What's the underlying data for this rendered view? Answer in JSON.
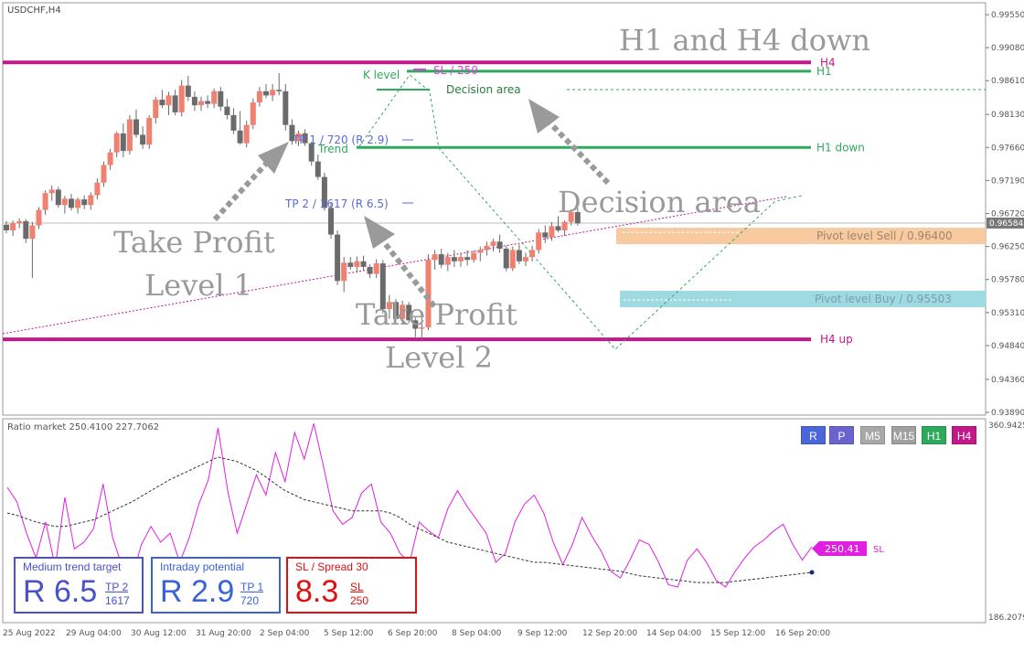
{
  "window": {
    "symbol": "USDCHF,H4"
  },
  "chart_data": {
    "type": "candlestick",
    "symbol": "USDCHF",
    "timeframe": "H4",
    "ylim": [
      0.9389,
      0.9955
    ],
    "y_ticks": [
      "0.99550",
      "0.99080",
      "0.98610",
      "0.98130",
      "0.97660",
      "0.97190",
      "0.96720",
      "0.96250",
      "0.95780",
      "0.95310",
      "0.94840",
      "0.94360",
      "0.93890"
    ],
    "y_tick_values": [
      0.9955,
      0.9908,
      0.9861,
      0.9813,
      0.9766,
      0.9719,
      0.9672,
      0.9625,
      0.9578,
      0.9531,
      0.9484,
      0.9436,
      0.9389
    ],
    "current_price": "0.96584",
    "x_labels": [
      "25 Aug 2022",
      "29 Aug 04:00",
      "30 Aug 12:00",
      "31 Aug 20:00",
      "2 Sep 04:00",
      "5 Sep 12:00",
      "6 Sep 20:00",
      "8 Sep 04:00",
      "9 Sep 12:00",
      "12 Sep 20:00",
      "14 Sep 04:00",
      "15 Sep 12:00",
      "16 Sep 20:00"
    ],
    "candles": [
      [
        0.9656,
        0.9661,
        0.9644,
        0.9648
      ],
      [
        0.9648,
        0.9662,
        0.964,
        0.9658
      ],
      [
        0.9658,
        0.9665,
        0.9651,
        0.9661
      ],
      [
        0.9661,
        0.9664,
        0.963,
        0.9636
      ],
      [
        0.9636,
        0.966,
        0.958,
        0.9655
      ],
      [
        0.9655,
        0.9681,
        0.965,
        0.9677
      ],
      [
        0.9677,
        0.9705,
        0.967,
        0.9701
      ],
      [
        0.9701,
        0.9712,
        0.969,
        0.9706
      ],
      [
        0.9706,
        0.971,
        0.968,
        0.9684
      ],
      [
        0.9684,
        0.9697,
        0.9672,
        0.9693
      ],
      [
        0.9693,
        0.97,
        0.9676,
        0.968
      ],
      [
        0.968,
        0.9695,
        0.9672,
        0.9692
      ],
      [
        0.9692,
        0.9698,
        0.9678,
        0.9684
      ],
      [
        0.9684,
        0.9702,
        0.9677,
        0.9698
      ],
      [
        0.9698,
        0.9722,
        0.9692,
        0.9716
      ],
      [
        0.9716,
        0.9746,
        0.971,
        0.9741
      ],
      [
        0.9741,
        0.9764,
        0.9734,
        0.9759
      ],
      [
        0.9759,
        0.9789,
        0.9752,
        0.9786
      ],
      [
        0.9786,
        0.98,
        0.9752,
        0.9761
      ],
      [
        0.9761,
        0.9812,
        0.9756,
        0.9806
      ],
      [
        0.9806,
        0.982,
        0.978,
        0.9784
      ],
      [
        0.9784,
        0.9796,
        0.9764,
        0.977
      ],
      [
        0.977,
        0.9812,
        0.9764,
        0.9808
      ],
      [
        0.9808,
        0.9838,
        0.98,
        0.9834
      ],
      [
        0.9834,
        0.9848,
        0.9822,
        0.9826
      ],
      [
        0.9826,
        0.9845,
        0.9812,
        0.984
      ],
      [
        0.984,
        0.9848,
        0.9812,
        0.9816
      ],
      [
        0.9816,
        0.9862,
        0.981,
        0.9854
      ],
      [
        0.9854,
        0.9868,
        0.9832,
        0.9838
      ],
      [
        0.9838,
        0.9846,
        0.9818,
        0.9826
      ],
      [
        0.9826,
        0.9838,
        0.9818,
        0.9832
      ],
      [
        0.9832,
        0.984,
        0.9822,
        0.9828
      ],
      [
        0.9828,
        0.985,
        0.9822,
        0.9846
      ],
      [
        0.9846,
        0.9852,
        0.9818,
        0.9824
      ],
      [
        0.9824,
        0.9835,
        0.9806,
        0.9812
      ],
      [
        0.9812,
        0.9822,
        0.9785,
        0.979
      ],
      [
        0.979,
        0.9818,
        0.977,
        0.9772
      ],
      [
        0.9772,
        0.9804,
        0.9766,
        0.9798
      ],
      [
        0.9798,
        0.9836,
        0.9792,
        0.983
      ],
      [
        0.983,
        0.9852,
        0.9824,
        0.9846
      ],
      [
        0.9846,
        0.9856,
        0.9836,
        0.984
      ],
      [
        0.984,
        0.9856,
        0.9832,
        0.9848
      ],
      [
        0.9848,
        0.9872,
        0.984,
        0.9846
      ],
      [
        0.9846,
        0.9856,
        0.979,
        0.9798
      ],
      [
        0.9798,
        0.9806,
        0.977,
        0.9775
      ],
      [
        0.9775,
        0.979,
        0.9768,
        0.9786
      ],
      [
        0.9786,
        0.9792,
        0.9768,
        0.9772
      ],
      [
        0.9772,
        0.9774,
        0.974,
        0.9746
      ],
      [
        0.9746,
        0.9756,
        0.972,
        0.9724
      ],
      [
        0.9724,
        0.973,
        0.9676,
        0.968
      ],
      [
        0.968,
        0.9688,
        0.9636,
        0.9642
      ],
      [
        0.9642,
        0.9648,
        0.957,
        0.9576
      ],
      [
        0.9576,
        0.961,
        0.956,
        0.9602
      ],
      [
        0.9602,
        0.961,
        0.9592,
        0.9596
      ],
      [
        0.9596,
        0.9611,
        0.9588,
        0.9604
      ],
      [
        0.9604,
        0.9612,
        0.959,
        0.9596
      ],
      [
        0.9596,
        0.96,
        0.958,
        0.9586
      ],
      [
        0.9586,
        0.9607,
        0.958,
        0.9601
      ],
      [
        0.9601,
        0.9606,
        0.953,
        0.9536
      ],
      [
        0.9536,
        0.9556,
        0.9522,
        0.9546
      ],
      [
        0.9546,
        0.955,
        0.9516,
        0.9522
      ],
      [
        0.9522,
        0.9548,
        0.9516,
        0.9542
      ],
      [
        0.9542,
        0.9546,
        0.9516,
        0.952
      ],
      [
        0.952,
        0.9524,
        0.9496,
        0.9508
      ],
      [
        0.9508,
        0.953,
        0.949,
        0.951
      ],
      [
        0.951,
        0.9614,
        0.9506,
        0.9606
      ],
      [
        0.9606,
        0.962,
        0.9592,
        0.9614
      ],
      [
        0.9614,
        0.9622,
        0.9594,
        0.9599
      ],
      [
        0.9599,
        0.9616,
        0.959,
        0.961
      ],
      [
        0.961,
        0.962,
        0.9596,
        0.9604
      ],
      [
        0.9604,
        0.9616,
        0.9596,
        0.961
      ],
      [
        0.961,
        0.962,
        0.9598,
        0.9606
      ],
      [
        0.9606,
        0.9619,
        0.9602,
        0.9616
      ],
      [
        0.9616,
        0.9625,
        0.9604,
        0.962
      ],
      [
        0.962,
        0.9632,
        0.9612,
        0.9626
      ],
      [
        0.9626,
        0.9636,
        0.9618,
        0.9632
      ],
      [
        0.9632,
        0.9642,
        0.9616,
        0.9622
      ],
      [
        0.9622,
        0.9626,
        0.959,
        0.9594
      ],
      [
        0.9594,
        0.9625,
        0.959,
        0.962
      ],
      [
        0.962,
        0.9628,
        0.96,
        0.9604
      ],
      [
        0.9604,
        0.9616,
        0.9597,
        0.961
      ],
      [
        0.961,
        0.9626,
        0.9604,
        0.962
      ],
      [
        0.962,
        0.965,
        0.9615,
        0.9645
      ],
      [
        0.9645,
        0.9655,
        0.963,
        0.9638
      ],
      [
        0.9638,
        0.966,
        0.9633,
        0.9654
      ],
      [
        0.9654,
        0.9668,
        0.9645,
        0.9648
      ],
      [
        0.9648,
        0.9662,
        0.964,
        0.966
      ],
      [
        0.966,
        0.9678,
        0.9655,
        0.9674
      ],
      [
        0.9674,
        0.968,
        0.9655,
        0.9658
      ]
    ],
    "levels": [
      {
        "label": "H4",
        "value": 0.9887,
        "color": "#c2188a",
        "kind": "line"
      },
      {
        "label": "H1",
        "value": 0.98745,
        "color": "#2eaa5c",
        "kind": "line"
      },
      {
        "label": "H1  down",
        "value": 0.9766,
        "color": "#2eaa5c",
        "kind": "line"
      },
      {
        "label": "H4  up",
        "value": 0.9493,
        "color": "#c2188a",
        "kind": "line"
      },
      {
        "label": "Pivot level Sell / 0.96400",
        "value": 0.964,
        "color": "#f7caa0",
        "kind": "band"
      },
      {
        "label": "Pivot level Buy / 0.95503",
        "value": 0.95503,
        "color": "#9fd9e2",
        "kind": "band"
      }
    ],
    "trade_labels": {
      "k_level": "K level",
      "sl": "SL / 250",
      "decision": "Decision area",
      "tp1": "TP 1 / 720 (R 2.9)",
      "tp2": "TP 2 / 1617 (R 6.5)",
      "trend": "Trend"
    },
    "annotations": {
      "headline": "H1 and H4 down",
      "decision_area": "Decision area",
      "tp1_line1": "Take Profit",
      "tp1_line2": "Level 1",
      "tp2_line1": "Take Profit",
      "tp2_line2": "Level 2"
    },
    "subwindow": {
      "title": "Ratio market 250.4100 227.7062",
      "axis_top": "360.9425",
      "axis_bottom": "186.2079",
      "ylim": [
        186.2079,
        360.9425
      ],
      "ratio": [
        303,
        290,
        262,
        240,
        272,
        232,
        294,
        248,
        254,
        266,
        306,
        258,
        232,
        222,
        252,
        268,
        254,
        262,
        236,
        258,
        288,
        310,
        356,
        300,
        262,
        288,
        314,
        296,
        334,
        308,
        352,
        328,
        360,
        322,
        282,
        270,
        276,
        298,
        306,
        272,
        262,
        244,
        236,
        272,
        264,
        258,
        284,
        300,
        286,
        274,
        262,
        236,
        244,
        272,
        288,
        296,
        280,
        254,
        234,
        252,
        276,
        260,
        246,
        228,
        222,
        238,
        256,
        252,
        236,
        216,
        214,
        238,
        248,
        236,
        220,
        214,
        228,
        240,
        250,
        256,
        264,
        270,
        252,
        238,
        250
      ],
      "signal": [
        280,
        278,
        275,
        272,
        270,
        268,
        268,
        270,
        272,
        274,
        278,
        282,
        286,
        290,
        295,
        300,
        305,
        310,
        314,
        318,
        322,
        326,
        330,
        328,
        326,
        322,
        318,
        312,
        306,
        300,
        296,
        292,
        290,
        288,
        286,
        284,
        282,
        282,
        282,
        282,
        280,
        276,
        270,
        266,
        262,
        258,
        254,
        252,
        250,
        248,
        246,
        244,
        242,
        240,
        238,
        236,
        236,
        235,
        234,
        233,
        232,
        231,
        230,
        229,
        228,
        226,
        224,
        223,
        222,
        221,
        220,
        219,
        218,
        218,
        218,
        218,
        219,
        220,
        221,
        222,
        223,
        224,
        225,
        226,
        227
      ],
      "ratio_badge": "250.41",
      "ratio_badge_tag": "SL"
    }
  },
  "tf_buttons": [
    {
      "label": "R",
      "color": "#4a66d8"
    },
    {
      "label": "P",
      "color": "#6a63cf"
    },
    {
      "label": "M5",
      "color": "#a8a8a8"
    },
    {
      "label": "M15",
      "color": "#a0a0a0"
    },
    {
      "label": "H1",
      "color": "#2eaa5c"
    },
    {
      "label": "H4",
      "color": "#c2188a"
    }
  ],
  "info_boxes": [
    {
      "caption": "Medium trend target",
      "big": "R 6.5",
      "frac_top": "TP 2",
      "frac_bottom": "1617",
      "color": "#4a52c8"
    },
    {
      "caption": "Intraday potential",
      "big": "R 2.9",
      "frac_top": "TP 1",
      "frac_bottom": "720",
      "color": "#3a63d8"
    },
    {
      "caption": "SL / Spread  30",
      "big": "8.3",
      "frac_top": "SL",
      "frac_bottom": "250",
      "color": "#e01010"
    }
  ]
}
